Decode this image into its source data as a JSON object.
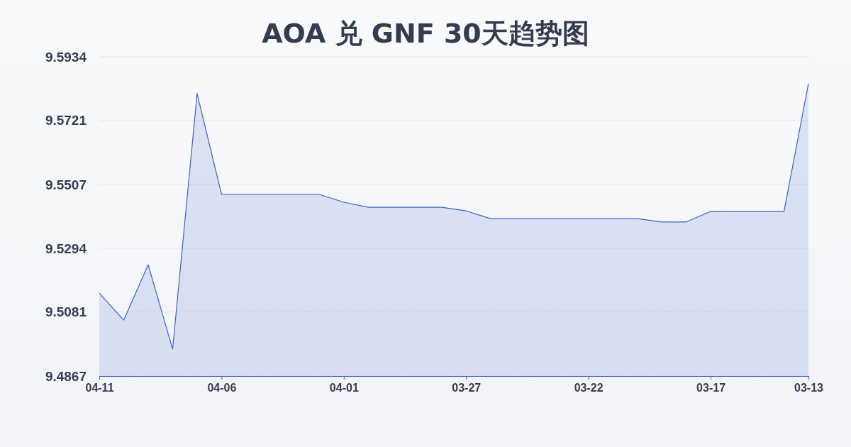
{
  "chart_data": {
    "type": "area",
    "title": "AOA 兑 GNF 30天趋势图",
    "categories": [
      "04-11",
      null,
      null,
      null,
      null,
      "04-06",
      null,
      null,
      null,
      null,
      "04-01",
      null,
      null,
      null,
      null,
      "03-27",
      null,
      null,
      null,
      null,
      "03-22",
      null,
      null,
      null,
      null,
      "03-17",
      null,
      null,
      null,
      "03-13"
    ],
    "series": [
      {
        "color": "#3a62c9",
        "values": [
          9.5144,
          9.5054,
          9.5239,
          9.4957,
          9.5811,
          9.5474,
          9.5474,
          9.5474,
          9.5474,
          9.5474,
          9.5448,
          9.5431,
          9.5431,
          9.5431,
          9.5431,
          9.5419,
          9.5393,
          9.5393,
          9.5393,
          9.5393,
          9.5393,
          9.5393,
          9.5393,
          9.5382,
          9.5382,
          9.5417,
          9.5417,
          9.5417,
          9.5417,
          9.5844
        ]
      }
    ],
    "ylim": [
      9.4867,
      9.5934
    ],
    "yticks": [
      9.4867,
      9.5081,
      9.5294,
      9.5507,
      9.5721,
      9.5934
    ],
    "grid": "y"
  }
}
